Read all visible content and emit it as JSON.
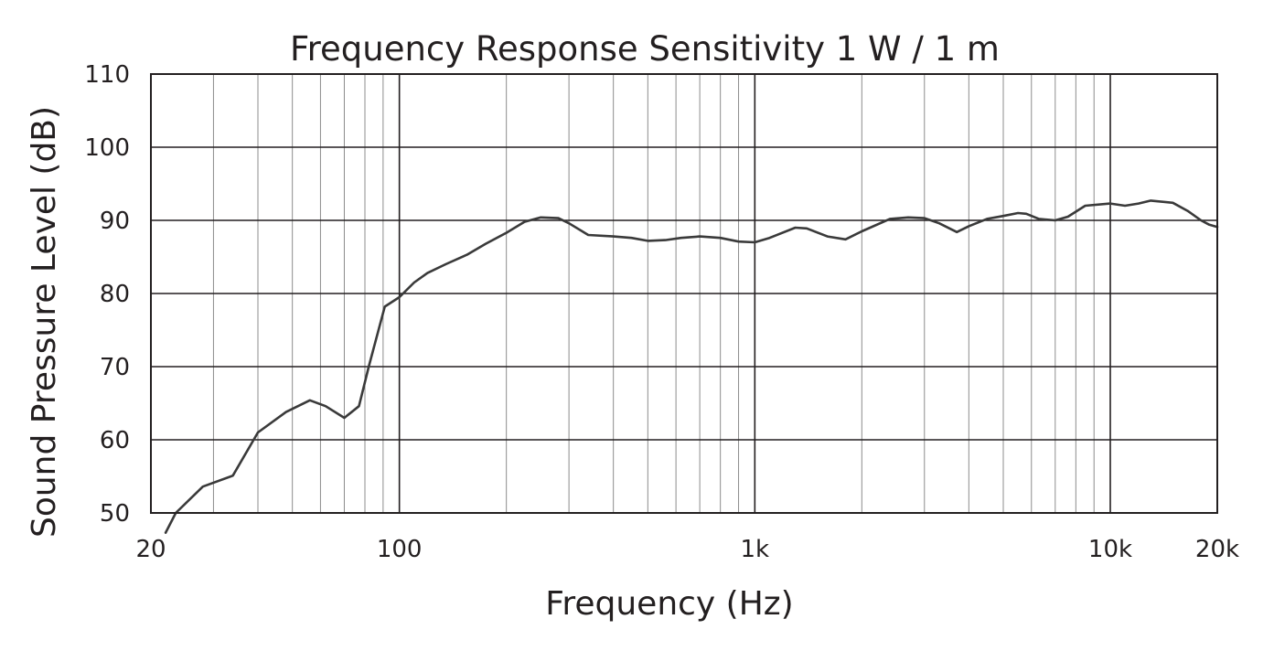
{
  "chart_data": {
    "type": "line",
    "title": "Frequency Response Sensitivity 1 W / 1 m",
    "xlabel": "Frequency (Hz)",
    "ylabel": "Sound Pressure Level (dB)",
    "x_scale": "log",
    "xlim": [
      20,
      20000
    ],
    "ylim": [
      50,
      110
    ],
    "grid": true,
    "x_ticks": [
      {
        "value": 20,
        "label": "20"
      },
      {
        "value": 100,
        "label": "100"
      },
      {
        "value": 1000,
        "label": "1k"
      },
      {
        "value": 10000,
        "label": "10k"
      },
      {
        "value": 20000,
        "label": "20k"
      }
    ],
    "y_ticks": [
      {
        "value": 50,
        "label": "50"
      },
      {
        "value": 60,
        "label": "60"
      },
      {
        "value": 70,
        "label": "70"
      },
      {
        "value": 80,
        "label": "80"
      },
      {
        "value": 90,
        "label": "90"
      },
      {
        "value": 100,
        "label": "100"
      },
      {
        "value": 110,
        "label": "110"
      }
    ],
    "series": [
      {
        "color": "#3a3a3a",
        "points": [
          [
            22,
            47.3
          ],
          [
            23.5,
            50.0
          ],
          [
            28,
            53.6
          ],
          [
            34,
            55.1
          ],
          [
            40,
            61.0
          ],
          [
            48,
            63.8
          ],
          [
            56,
            65.4
          ],
          [
            62,
            64.6
          ],
          [
            70,
            63.0
          ],
          [
            77,
            64.6
          ],
          [
            82,
            70.0
          ],
          [
            91,
            78.2
          ],
          [
            100,
            79.5
          ],
          [
            110,
            81.5
          ],
          [
            120,
            82.8
          ],
          [
            135,
            84.0
          ],
          [
            155,
            85.3
          ],
          [
            175,
            86.8
          ],
          [
            200,
            88.3
          ],
          [
            225,
            89.8
          ],
          [
            250,
            90.4
          ],
          [
            280,
            90.3
          ],
          [
            300,
            89.6
          ],
          [
            340,
            88.0
          ],
          [
            400,
            87.8
          ],
          [
            450,
            87.6
          ],
          [
            500,
            87.2
          ],
          [
            560,
            87.3
          ],
          [
            620,
            87.6
          ],
          [
            700,
            87.8
          ],
          [
            800,
            87.6
          ],
          [
            900,
            87.1
          ],
          [
            1000,
            87.0
          ],
          [
            1100,
            87.6
          ],
          [
            1300,
            89.0
          ],
          [
            1400,
            88.9
          ],
          [
            1600,
            87.8
          ],
          [
            1800,
            87.4
          ],
          [
            2000,
            88.5
          ],
          [
            2400,
            90.2
          ],
          [
            2700,
            90.4
          ],
          [
            3000,
            90.3
          ],
          [
            3300,
            89.6
          ],
          [
            3700,
            88.4
          ],
          [
            4000,
            89.2
          ],
          [
            4500,
            90.2
          ],
          [
            5000,
            90.6
          ],
          [
            5500,
            91.0
          ],
          [
            5800,
            90.9
          ],
          [
            6300,
            90.2
          ],
          [
            7000,
            90.0
          ],
          [
            7600,
            90.5
          ],
          [
            8500,
            92.0
          ],
          [
            10000,
            92.3
          ],
          [
            11000,
            92.0
          ],
          [
            12000,
            92.3
          ],
          [
            13000,
            92.7
          ],
          [
            15000,
            92.4
          ],
          [
            16500,
            91.3
          ],
          [
            18000,
            90.0
          ],
          [
            19000,
            89.4
          ],
          [
            20000,
            89.1
          ]
        ]
      }
    ]
  }
}
